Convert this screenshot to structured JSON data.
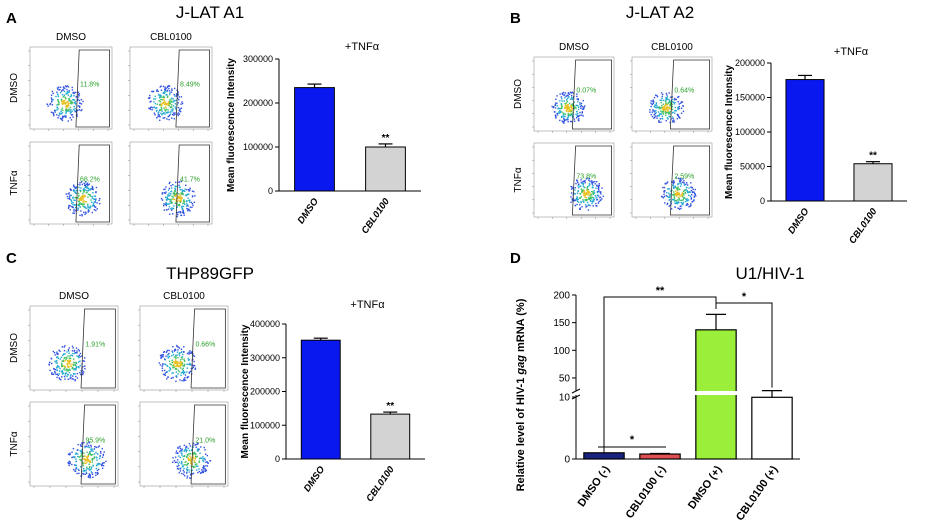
{
  "panels": [
    {
      "letter": "A",
      "title": "J-LAT A1",
      "flow": {
        "col_labels": [
          "DMSO",
          "CBL0100"
        ],
        "row_labels": [
          "DMSO",
          "TNFα"
        ],
        "percents": [
          "11.8%",
          "8.49%",
          "68.2%",
          "41.7%"
        ]
      }
    },
    {
      "letter": "B",
      "title": "J-LAT A2",
      "flow": {
        "col_labels": [
          "DMSO",
          "CBL0100"
        ],
        "row_labels": [
          "DMSO",
          "TNFα"
        ],
        "percents": [
          "0.07%",
          "0.64%",
          "73.8%",
          "2.59%"
        ]
      }
    },
    {
      "letter": "C",
      "title": "THP89GFP",
      "flow": {
        "col_labels": [
          "DMSO",
          "CBL0100"
        ],
        "row_labels": [
          "DMSO",
          "TNFα"
        ],
        "percents": [
          "1.91%",
          "0.66%",
          "95.9%",
          "21.0%"
        ]
      }
    },
    {
      "letter": "D",
      "title": "U1/HIV-1"
    }
  ],
  "chart_data": [
    {
      "panel": "A",
      "type": "bar",
      "title": "+TNFα",
      "ylabel": "Mean fluorescence Intensity",
      "categories": [
        "DMSO",
        "CBL0100"
      ],
      "values": [
        235000,
        100000
      ],
      "errors": [
        8000,
        7000
      ],
      "ylim": [
        0,
        300000
      ],
      "yticks": [
        "0",
        "100000",
        "200000",
        "300000"
      ],
      "significance": [
        "",
        "**"
      ],
      "colors": [
        "#0a18f0",
        "#d3d3d3"
      ]
    },
    {
      "panel": "B",
      "type": "bar",
      "title": "+TNFα",
      "ylabel": "Mean fluorescence Intensity",
      "categories": [
        "DMSO",
        "CBL0100"
      ],
      "values": [
        176000,
        54000
      ],
      "errors": [
        6000,
        3000
      ],
      "ylim": [
        0,
        200000
      ],
      "yticks": [
        "0",
        "50000",
        "100000",
        "150000",
        "200000"
      ],
      "significance": [
        "",
        "**"
      ],
      "colors": [
        "#0a18f0",
        "#d3d3d3"
      ]
    },
    {
      "panel": "C",
      "type": "bar",
      "title": "+TNFα",
      "ylabel": "Mean fluorescence Intensity",
      "categories": [
        "DMSO",
        "CBL0100"
      ],
      "values": [
        352000,
        133000
      ],
      "errors": [
        6000,
        6000
      ],
      "ylim": [
        0,
        400000
      ],
      "yticks": [
        "0",
        "100000",
        "200000",
        "300000",
        "400000"
      ],
      "significance": [
        "",
        "**"
      ],
      "colors": [
        "#0a18f0",
        "#d3d3d3"
      ]
    },
    {
      "panel": "D",
      "type": "bar",
      "ylabel_parts": [
        "Relative level of HIV-1 ",
        "gag",
        " mRNA (%)"
      ],
      "categories": [
        "DMSO (-)",
        "CBL0100 (-)",
        "DMSO (+)",
        "CBL0100 (+)"
      ],
      "values": [
        1,
        0.8,
        137,
        15
      ],
      "errors": [
        0,
        0.1,
        28,
        12
      ],
      "colors": [
        "#1a237e",
        "#e05050",
        "#9bef3a",
        "#ffffff"
      ],
      "ylim": [
        0,
        200
      ],
      "axis_break": [
        12,
        30
      ],
      "upper_ticks": [
        "50",
        "100",
        "150",
        "200"
      ],
      "lower_ticks": [
        "0",
        "10"
      ],
      "comparisons": [
        {
          "label": "*",
          "between": [
            "DMSO (-)",
            "CBL0100 (-)"
          ]
        },
        {
          "label": "**",
          "between": [
            "DMSO (-)",
            "DMSO (+)"
          ]
        },
        {
          "label": "*",
          "between": [
            "DMSO (+)",
            "CBL0100 (+)"
          ]
        }
      ]
    }
  ]
}
